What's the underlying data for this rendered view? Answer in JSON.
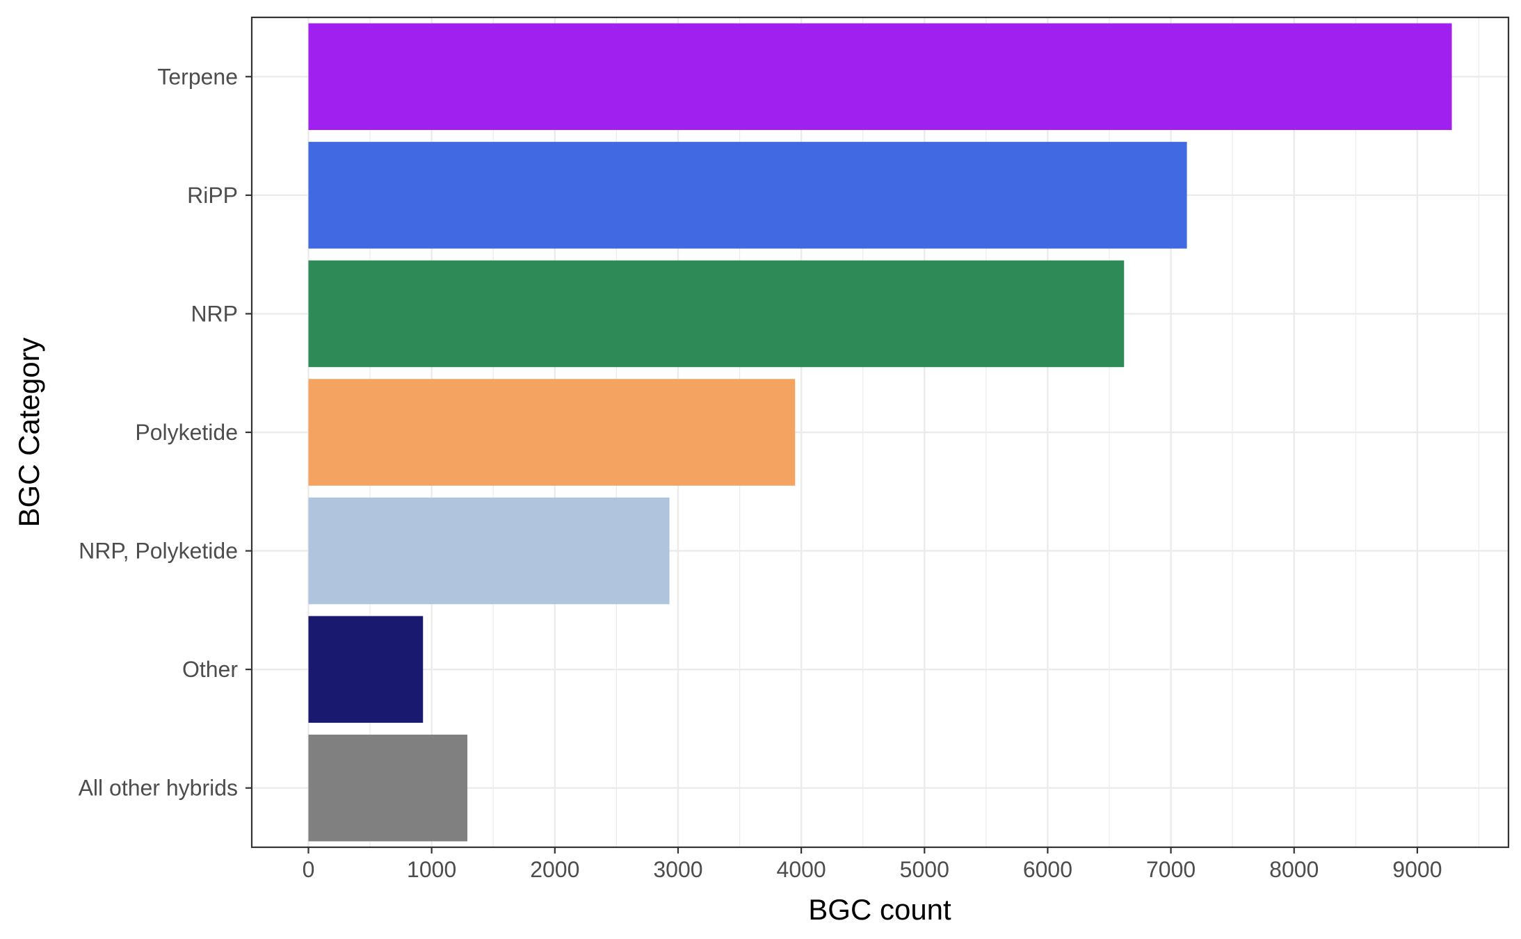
{
  "chart_data": {
    "type": "bar",
    "orientation": "horizontal",
    "categories": [
      "Terpene",
      "RiPP",
      "NRP",
      "Polyketide",
      "NRP, Polyketide",
      "Other",
      "All other hybrids"
    ],
    "values": [
      9280,
      7130,
      6620,
      3950,
      2930,
      930,
      1290
    ],
    "colors": [
      "#A020F0",
      "#4169E1",
      "#2E8B57",
      "#F4A460",
      "#B0C4DE",
      "#191970",
      "#808080"
    ],
    "xlabel": "BGC count",
    "ylabel": "BGC Category",
    "xlim": [
      -460,
      9740
    ],
    "x_ticks": [
      0,
      1000,
      2000,
      3000,
      4000,
      5000,
      6000,
      7000,
      8000,
      9000
    ],
    "x_tick_labels": [
      "0",
      "1000",
      "2000",
      "3000",
      "4000",
      "5000",
      "6000",
      "7000",
      "8000",
      "9000"
    ],
    "grid": true,
    "legend": "none"
  }
}
